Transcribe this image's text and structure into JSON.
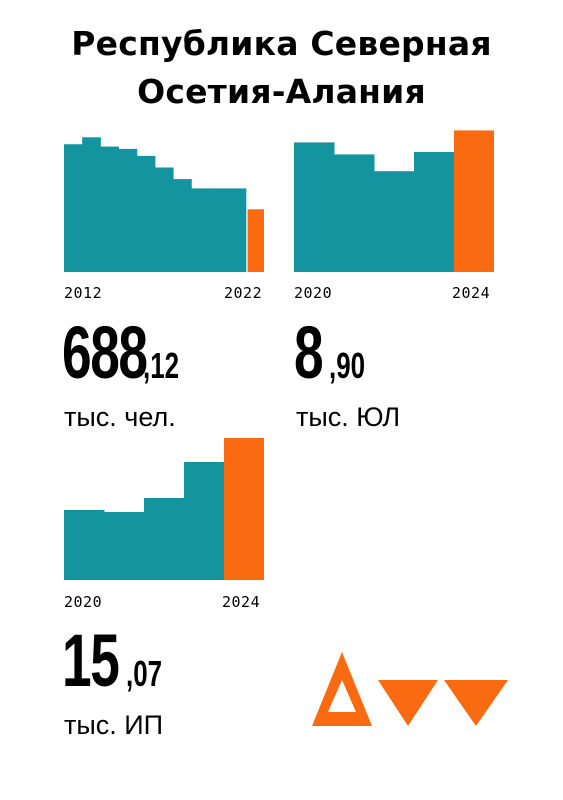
{
  "title": {
    "line1": "Республика Северная",
    "line2": "Осетия-Алания"
  },
  "colors": {
    "teal": "#13949e",
    "orange": "#fa6a11"
  },
  "chart_data": [
    {
      "type": "bar",
      "x": [
        "2012",
        "2013",
        "2014",
        "2015",
        "2016",
        "2017",
        "2018",
        "2019",
        "2020",
        "2021",
        "2022"
      ],
      "values": [
        705,
        708,
        704,
        703,
        700,
        695,
        690,
        686,
        686,
        686,
        677
      ],
      "highlight_last": true,
      "ylim": [
        650,
        712
      ],
      "tick_labels": {
        "start": "2012",
        "end": "2022"
      }
    },
    {
      "type": "bar",
      "x": [
        "2020",
        "2021",
        "2022",
        "2023",
        "2024"
      ],
      "values": [
        9.7,
        9.45,
        9.1,
        9.5,
        9.95
      ],
      "highlight_last": true,
      "ylim": [
        7.0,
        10.0
      ],
      "tick_labels": {
        "start": "2020",
        "end": "2024"
      }
    },
    {
      "type": "bar",
      "x": [
        "2020",
        "2021",
        "2022",
        "2023",
        "2024"
      ],
      "values": [
        10.5,
        10.4,
        11.1,
        12.9,
        14.1
      ],
      "highlight_last": true,
      "ylim": [
        7.0,
        14.2
      ],
      "tick_labels": {
        "start": "2020",
        "end": "2024"
      }
    }
  ],
  "stats": [
    {
      "int": "688",
      "dec": ",12",
      "unit": "тыс. чел."
    },
    {
      "int": "8",
      "dec": ",90",
      "unit": "тыс. ЮЛ"
    },
    {
      "int": "15",
      "dec": ",07",
      "unit": "тыс. ИП"
    }
  ],
  "logo": {
    "name": "logo-triangles"
  }
}
